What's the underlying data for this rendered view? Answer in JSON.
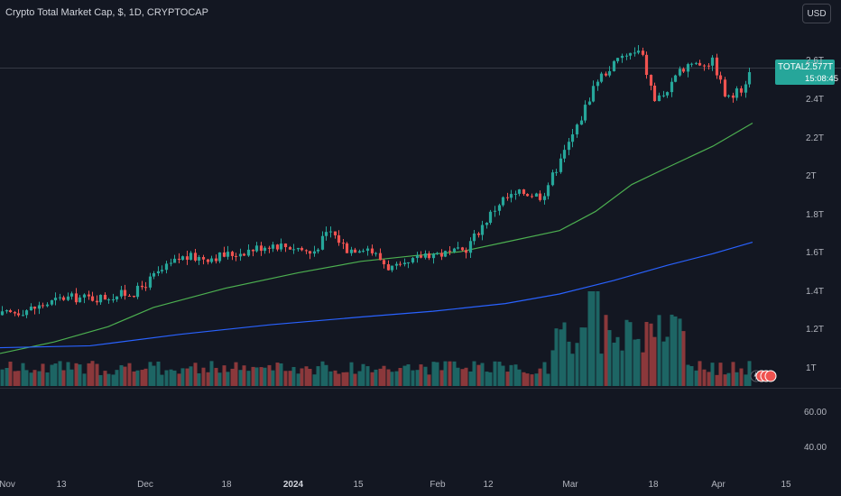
{
  "header": {
    "title": "Crypto Total Market Cap, $, 1D, CRYPTOCAP",
    "currency": "USD"
  },
  "price_tag": {
    "symbol": "TOTAL",
    "value": "2.577T",
    "countdown": "15:08:45"
  },
  "colors": {
    "background": "#131722",
    "up": "#26a69a",
    "down": "#ef5350",
    "ma_short": "#4caf50",
    "ma_long": "#2962ff",
    "grid": "#1e222d"
  },
  "chart_data": {
    "type": "candlestick",
    "title": "Crypto Total Market Cap, $, 1D, CRYPTOCAP",
    "price_axis": {
      "ticks": [
        "1T",
        "1.2T",
        "1.4T",
        "1.6T",
        "1.8T",
        "2T",
        "2.2T",
        "2.4T",
        "2.6T"
      ],
      "range": [
        0.93,
        2.68
      ]
    },
    "volume_axis": {
      "ticks": [
        "60.00",
        "40.00"
      ]
    },
    "x_axis_labels": [
      "Nov",
      "13",
      "Dec",
      "18",
      "2024",
      "15",
      "Feb",
      "12",
      "Mar",
      "18",
      "Apr",
      "15"
    ],
    "x_axis_bold": [
      "2024"
    ],
    "ma_short_approx": [
      {
        "x": "Oct 31",
        "y": 1.08
      },
      {
        "x": "Nov 20",
        "y": 1.17
      },
      {
        "x": "Dec 10",
        "y": 1.33
      },
      {
        "x": "Jan 1",
        "y": 1.45
      },
      {
        "x": "Jan 20",
        "y": 1.55
      },
      {
        "x": "Feb 10",
        "y": 1.6
      },
      {
        "x": "Feb 28",
        "y": 1.7
      },
      {
        "x": "Mar 15",
        "y": 1.95
      },
      {
        "x": "Apr 1",
        "y": 2.15
      },
      {
        "x": "Apr 8",
        "y": 2.28
      }
    ],
    "ma_long_approx": [
      {
        "x": "Oct 31",
        "y": 1.11
      },
      {
        "x": "Dec 1",
        "y": 1.19
      },
      {
        "x": "Jan 1",
        "y": 1.26
      },
      {
        "x": "Feb 1",
        "y": 1.32
      },
      {
        "x": "Mar 1",
        "y": 1.42
      },
      {
        "x": "Mar 20",
        "y": 1.54
      },
      {
        "x": "Apr 8",
        "y": 1.66
      }
    ],
    "last_close": 2.577
  }
}
